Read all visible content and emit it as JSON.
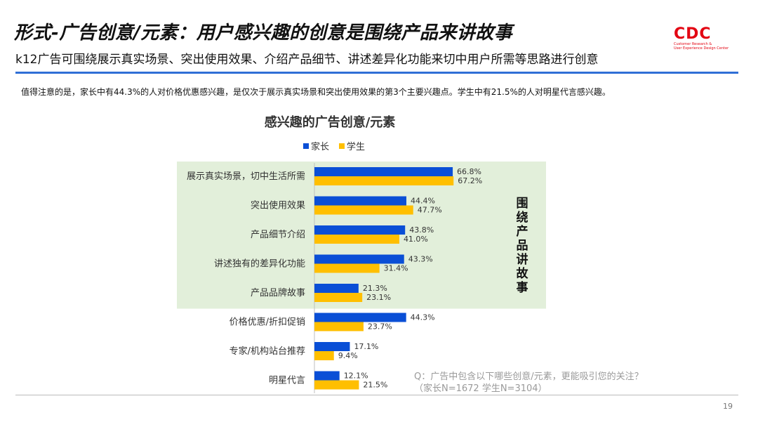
{
  "header": {
    "title": "形式-广告创意/元素：用户感兴趣的创意是围绕产品来讲故事",
    "subtitle": "k12广告可围绕展示真实场景、突出使用效果、介绍产品细节、讲述差异化功能来切中用户所需等思路进行创意",
    "logo_text": "CDC",
    "logo_sub_1": "Customer Research &",
    "logo_sub_2": "User Experience Design Center"
  },
  "note": "值得注意的是，家长中有44.3%的人对价格优惠感兴趣，是仅次于展示真实场景和突出使用效果的第3个主要兴趣点。学生中有21.5%的人对明星代言感兴趣。",
  "side_label": "围绕产品讲故事",
  "question": {
    "line1": "Q：广告中包含以下哪些创意/元素，更能吸引您的关注？",
    "line2": "（家长N=1672      学生N=3104）"
  },
  "page_number": "19",
  "colors": {
    "parent": "#0a4fd6",
    "student": "#ffbf00",
    "highlight_bg": "#e2efda",
    "rule": "#2f6fd6"
  },
  "chart_data": {
    "type": "bar",
    "orientation": "horizontal",
    "title": "感兴趣的广告创意/元素",
    "legend_position": "top",
    "categories": [
      "展示真实场景，切中生活所需",
      "突出使用效果",
      "产品细节介绍",
      "讲述独有的差异化功能",
      "产品品牌故事",
      "价格优惠/折扣促销",
      "专家/机构站台推荐",
      "明星代言"
    ],
    "series": [
      {
        "name": "家长",
        "values": [
          66.8,
          44.4,
          43.8,
          43.3,
          21.3,
          44.3,
          17.1,
          12.1
        ],
        "labels": [
          "66.8%",
          "44.4%",
          "43.8%",
          "43.3%",
          "21.3%",
          "44.3%",
          "17.1%",
          "12.1%"
        ]
      },
      {
        "name": "学生",
        "values": [
          67.2,
          47.7,
          41.0,
          31.4,
          23.1,
          23.7,
          9.4,
          21.5
        ],
        "labels": [
          "67.2%",
          "47.7%",
          "41.0%",
          "31.4%",
          "23.1%",
          "23.7%",
          "9.4%",
          "21.5%"
        ]
      }
    ],
    "highlighted_categories": 5,
    "grid": false
  }
}
